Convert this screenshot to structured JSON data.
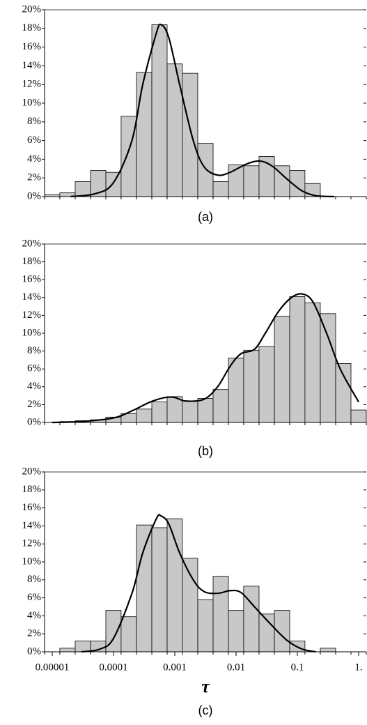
{
  "chart_data": [
    {
      "type": "histogram",
      "caption": "(a)",
      "bins": [
        7.5e-06,
        1.33e-05,
        2.37e-05,
        4.22e-05,
        7.5e-05,
        0.000133,
        0.000237,
        0.000422,
        0.00075,
        0.00133,
        0.00237,
        0.00422,
        0.0075,
        0.0133,
        0.0237,
        0.0422,
        0.075,
        0.133,
        0.237,
        0.422,
        0.75,
        1.334
      ],
      "values": [
        0.2,
        0.4,
        1.6,
        2.8,
        2.6,
        8.6,
        13.3,
        18.4,
        14.2,
        13.2,
        5.7,
        1.6,
        3.4,
        3.3,
        4.3,
        3.3,
        2.8,
        1.4,
        0,
        0,
        0
      ],
      "curve": {
        "x": [
          2e-05,
          5e-05,
          0.0001,
          0.0002,
          0.0003,
          0.0005,
          0.0006,
          0.0008,
          0.0012,
          0.002,
          0.003,
          0.005,
          0.008,
          0.015,
          0.025,
          0.04,
          0.07,
          0.12,
          0.2,
          0.4
        ],
        "values": [
          0,
          0.3,
          1.5,
          6,
          12,
          17.5,
          18.4,
          17,
          12,
          6,
          3.2,
          2.3,
          2.6,
          3.5,
          3.8,
          3.2,
          1.8,
          0.6,
          0.1,
          0
        ]
      },
      "bar_color": "#c8c8c8",
      "curve_color": "#000000",
      "log_x": true,
      "xlim": [
        7.5e-06,
        1.334
      ],
      "ylim": [
        0,
        20
      ],
      "yticks": [
        {
          "value": 0,
          "label": "0%"
        },
        {
          "value": 2,
          "label": "2%"
        },
        {
          "value": 4,
          "label": "4%"
        },
        {
          "value": 6,
          "label": "6%"
        },
        {
          "value": 8,
          "label": "8%"
        },
        {
          "value": 10,
          "label": "10%"
        },
        {
          "value": 12,
          "label": "12%"
        },
        {
          "value": 14,
          "label": "14%"
        },
        {
          "value": 16,
          "label": "16%"
        },
        {
          "value": 18,
          "label": "18%"
        },
        {
          "value": 20,
          "label": "20%"
        }
      ]
    },
    {
      "type": "histogram",
      "caption": "(b)",
      "bins": [
        7.5e-06,
        1.33e-05,
        2.37e-05,
        4.22e-05,
        7.5e-05,
        0.000133,
        0.000237,
        0.000422,
        0.00075,
        0.00133,
        0.00237,
        0.00422,
        0.0075,
        0.0133,
        0.0237,
        0.0422,
        0.075,
        0.133,
        0.237,
        0.422,
        0.75,
        1.334
      ],
      "values": [
        0,
        0.1,
        0.2,
        0.3,
        0.6,
        1.0,
        1.5,
        2.3,
        2.9,
        2.4,
        2.7,
        3.7,
        7.2,
        8.1,
        8.5,
        11.9,
        14.1,
        13.4,
        12.2,
        6.6,
        1.4
      ],
      "curve": {
        "x": [
          1e-05,
          3e-05,
          0.0001,
          0.0002,
          0.0004,
          0.0007,
          0.001,
          0.0015,
          0.003,
          0.005,
          0.008,
          0.012,
          0.02,
          0.03,
          0.05,
          0.08,
          0.12,
          0.18,
          0.3,
          0.5,
          1.0
        ],
        "values": [
          0,
          0.1,
          0.5,
          1.3,
          2.3,
          2.8,
          2.8,
          2.4,
          2.6,
          4,
          6.3,
          7.7,
          8.2,
          10,
          12.5,
          14,
          14.4,
          13.5,
          10,
          6,
          2.3
        ]
      },
      "bar_color": "#c8c8c8",
      "curve_color": "#000000",
      "log_x": true,
      "xlim": [
        7.5e-06,
        1.334
      ],
      "ylim": [
        0,
        20
      ],
      "yticks": [
        {
          "value": 0,
          "label": "0%"
        },
        {
          "value": 2,
          "label": "2%"
        },
        {
          "value": 4,
          "label": "4%"
        },
        {
          "value": 6,
          "label": "6%"
        },
        {
          "value": 8,
          "label": "8%"
        },
        {
          "value": 10,
          "label": "10%"
        },
        {
          "value": 12,
          "label": "12%"
        },
        {
          "value": 14,
          "label": "14%"
        },
        {
          "value": 16,
          "label": "16%"
        },
        {
          "value": 18,
          "label": "18%"
        },
        {
          "value": 20,
          "label": "20%"
        }
      ]
    },
    {
      "type": "histogram",
      "caption": "(c)",
      "xlabel": "τ",
      "bins": [
        7.5e-06,
        1.33e-05,
        2.37e-05,
        4.22e-05,
        7.5e-05,
        0.000133,
        0.000237,
        0.000422,
        0.00075,
        0.00133,
        0.00237,
        0.00422,
        0.0075,
        0.0133,
        0.0237,
        0.0422,
        0.075,
        0.133,
        0.237,
        0.422,
        0.75,
        1.334
      ],
      "values": [
        0,
        0.4,
        1.2,
        1.2,
        4.6,
        3.9,
        14.1,
        13.8,
        14.8,
        10.4,
        5.8,
        8.4,
        4.6,
        7.3,
        4.2,
        4.6,
        1.2,
        0,
        0.4,
        0,
        0
      ],
      "curve": {
        "x": [
          3e-05,
          6e-05,
          0.0001,
          0.0002,
          0.0003,
          0.0005,
          0.0006,
          0.0008,
          0.0012,
          0.002,
          0.003,
          0.005,
          0.008,
          0.012,
          0.02,
          0.04,
          0.07,
          0.12,
          0.2
        ],
        "values": [
          0,
          0.3,
          1.5,
          6.5,
          11,
          14.8,
          15.1,
          14.2,
          11,
          8,
          6.7,
          6.5,
          6.8,
          6.6,
          5,
          2.8,
          1.2,
          0.3,
          0
        ]
      },
      "bar_color": "#c8c8c8",
      "curve_color": "#000000",
      "log_x": true,
      "xlim": [
        7.5e-06,
        1.334
      ],
      "ylim": [
        0,
        20
      ],
      "xticks": [
        1e-05,
        0.0001,
        0.001,
        0.01,
        0.1,
        {
          "value": 1,
          "label": "1."
        }
      ],
      "yticks": [
        {
          "value": 0,
          "label": "0%"
        },
        {
          "value": 2,
          "label": "2%"
        },
        {
          "value": 4,
          "label": "4%"
        },
        {
          "value": 6,
          "label": "6%"
        },
        {
          "value": 8,
          "label": "8%"
        },
        {
          "value": 10,
          "label": "10%"
        },
        {
          "value": 12,
          "label": "12%"
        },
        {
          "value": 14,
          "label": "14%"
        },
        {
          "value": 16,
          "label": "16%"
        },
        {
          "value": 18,
          "label": "18%"
        },
        {
          "value": 20,
          "label": "20%"
        }
      ]
    }
  ]
}
